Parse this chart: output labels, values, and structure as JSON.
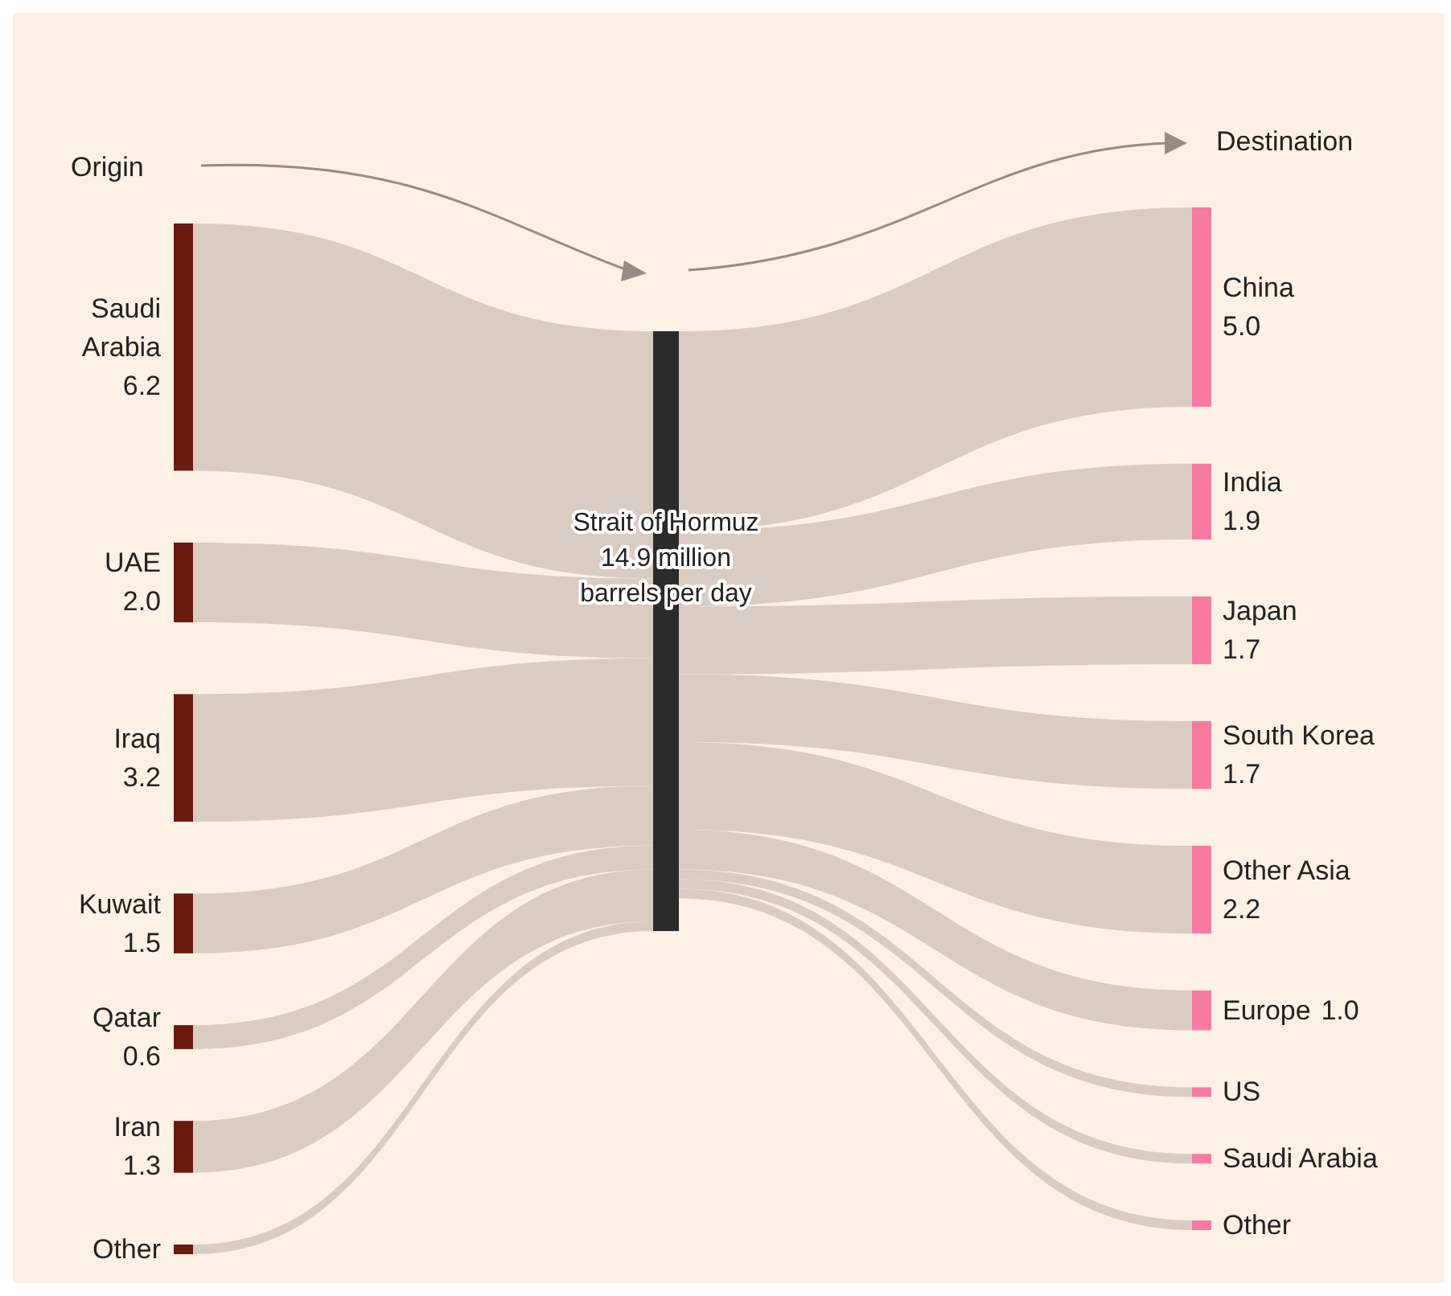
{
  "chart_data": {
    "type": "other",
    "categories": [
      "Saudi Arabia",
      "UAE",
      "Iraq",
      "Kuwait",
      "Qatar",
      "Iran",
      "Other",
      "China",
      "India",
      "Japan",
      "South Korea",
      "Other Asia",
      "Europe",
      "US",
      "Saudi Arabia",
      "Other"
    ],
    "series": [
      {
        "color": "#6b1a0e",
        "values": [
          6.2,
          2.0,
          3.2,
          1.5,
          0.6,
          1.3,
          null,
          null,
          null,
          null,
          null,
          null,
          null,
          null,
          null,
          null
        ],
        "value_labels": [
          "6.2",
          "2.0",
          "3.2",
          "1.5",
          "0.6",
          "1.3",
          null,
          null,
          null,
          null,
          null,
          null,
          null,
          null,
          null,
          null
        ]
      },
      {
        "color": "#f77aa1",
        "values": [
          null,
          null,
          null,
          null,
          null,
          null,
          null,
          5.0,
          1.9,
          1.7,
          1.7,
          2.2,
          1.0,
          null,
          null,
          null
        ],
        "value_labels": [
          null,
          null,
          null,
          null,
          null,
          null,
          null,
          "5.0",
          "1.9",
          "1.7",
          "1.7",
          "2.2",
          "1.0",
          null,
          null,
          null
        ]
      }
    ],
    "annotations": [
      "Origin",
      "Destination",
      "Strait of Hormuz 14.9 million barrels per day"
    ]
  }
}
